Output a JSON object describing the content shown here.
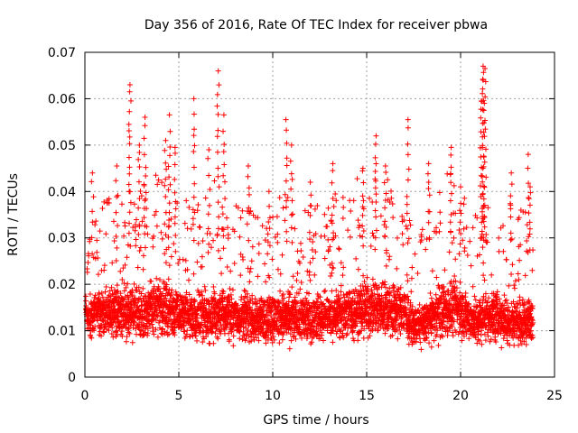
{
  "chart_data": {
    "type": "scatter",
    "title": "Day 356 of 2016, Rate Of TEC Index for receiver pbwa",
    "xlabel": "GPS time / hours",
    "ylabel": "ROTI / TECUs",
    "xlim": [
      0,
      25
    ],
    "ylim": [
      0,
      0.07
    ],
    "grid": true,
    "marker": "+",
    "x_ticks": [
      0,
      5,
      10,
      15,
      20,
      25
    ],
    "y_ticks": [
      0,
      0.01,
      0.02,
      0.03,
      0.04,
      0.05,
      0.06,
      0.07
    ],
    "x_tick_labels": [
      "0",
      "5",
      "10",
      "15",
      "20",
      "25"
    ],
    "y_tick_labels": [
      "0",
      "0.01",
      "0.02",
      "0.03",
      "0.04",
      "0.05",
      "0.06",
      "0.07"
    ],
    "series": [
      {
        "name": "ROTI",
        "color": "#ff0000",
        "sampling": {
          "x_start": 0.05,
          "x_end": 23.85,
          "step_hours": 0.0167
        },
        "profile_x": [
          0,
          0.5,
          1,
          1.5,
          2,
          2.5,
          3,
          3.5,
          4,
          4.5,
          5,
          5.5,
          6,
          6.5,
          7,
          7.5,
          8,
          8.5,
          9,
          9.5,
          10,
          10.5,
          11,
          11.5,
          12,
          12.5,
          13,
          13.5,
          14,
          14.5,
          15,
          15.5,
          16,
          16.5,
          17,
          17.5,
          18,
          18.5,
          19,
          19.5,
          20,
          20.5,
          21,
          21.5,
          22,
          22.5,
          23,
          23.5,
          23.85
        ],
        "profile_median": [
          0.013,
          0.0135,
          0.014,
          0.014,
          0.0145,
          0.014,
          0.014,
          0.0145,
          0.015,
          0.0145,
          0.0135,
          0.013,
          0.013,
          0.0135,
          0.014,
          0.0135,
          0.013,
          0.013,
          0.0125,
          0.0125,
          0.013,
          0.013,
          0.013,
          0.0125,
          0.0125,
          0.013,
          0.013,
          0.0135,
          0.014,
          0.0145,
          0.015,
          0.015,
          0.015,
          0.0145,
          0.014,
          0.011,
          0.0115,
          0.013,
          0.0145,
          0.015,
          0.0145,
          0.012,
          0.0125,
          0.013,
          0.013,
          0.0125,
          0.012,
          0.012,
          0.012
        ],
        "profile_spread": [
          0.005,
          0.006,
          0.007,
          0.007,
          0.0075,
          0.008,
          0.008,
          0.008,
          0.009,
          0.008,
          0.007,
          0.007,
          0.007,
          0.0075,
          0.008,
          0.0075,
          0.007,
          0.007,
          0.0065,
          0.0065,
          0.007,
          0.0075,
          0.0075,
          0.007,
          0.007,
          0.007,
          0.007,
          0.0075,
          0.008,
          0.008,
          0.0085,
          0.0085,
          0.008,
          0.008,
          0.0075,
          0.005,
          0.006,
          0.007,
          0.0085,
          0.008,
          0.008,
          0.006,
          0.0075,
          0.008,
          0.0075,
          0.007,
          0.007,
          0.007,
          0.006
        ],
        "spikes": [
          {
            "x": 2.4,
            "y": 0.063
          },
          {
            "x": 3.2,
            "y": 0.056
          },
          {
            "x": 4.5,
            "y": 0.0565
          },
          {
            "x": 5.8,
            "y": 0.06
          },
          {
            "x": 7.1,
            "y": 0.066
          },
          {
            "x": 7.4,
            "y": 0.0565
          },
          {
            "x": 10.7,
            "y": 0.0555
          },
          {
            "x": 11.0,
            "y": 0.05
          },
          {
            "x": 15.5,
            "y": 0.052
          },
          {
            "x": 17.2,
            "y": 0.0555
          },
          {
            "x": 19.5,
            "y": 0.0495
          },
          {
            "x": 21.2,
            "y": 0.067
          },
          {
            "x": 21.3,
            "y": 0.0665
          },
          {
            "x": 21.2,
            "y": 0.064
          },
          {
            "x": 21.1,
            "y": 0.0595
          },
          {
            "x": 23.6,
            "y": 0.048
          },
          {
            "x": 1.7,
            "y": 0.0455
          },
          {
            "x": 8.7,
            "y": 0.0455
          },
          {
            "x": 13.2,
            "y": 0.046
          },
          {
            "x": 14.8,
            "y": 0.045
          },
          {
            "x": 16.0,
            "y": 0.0455
          },
          {
            "x": 4.3,
            "y": 0.051
          },
          {
            "x": 4.8,
            "y": 0.0495
          },
          {
            "x": 2.9,
            "y": 0.05
          },
          {
            "x": 0.4,
            "y": 0.044
          },
          {
            "x": 6.6,
            "y": 0.049
          },
          {
            "x": 9.8,
            "y": 0.04
          },
          {
            "x": 12.0,
            "y": 0.042
          },
          {
            "x": 18.3,
            "y": 0.046
          },
          {
            "x": 20.0,
            "y": 0.041
          },
          {
            "x": 22.7,
            "y": 0.044
          },
          {
            "x": 23.7,
            "y": 0.041
          }
        ]
      }
    ]
  }
}
